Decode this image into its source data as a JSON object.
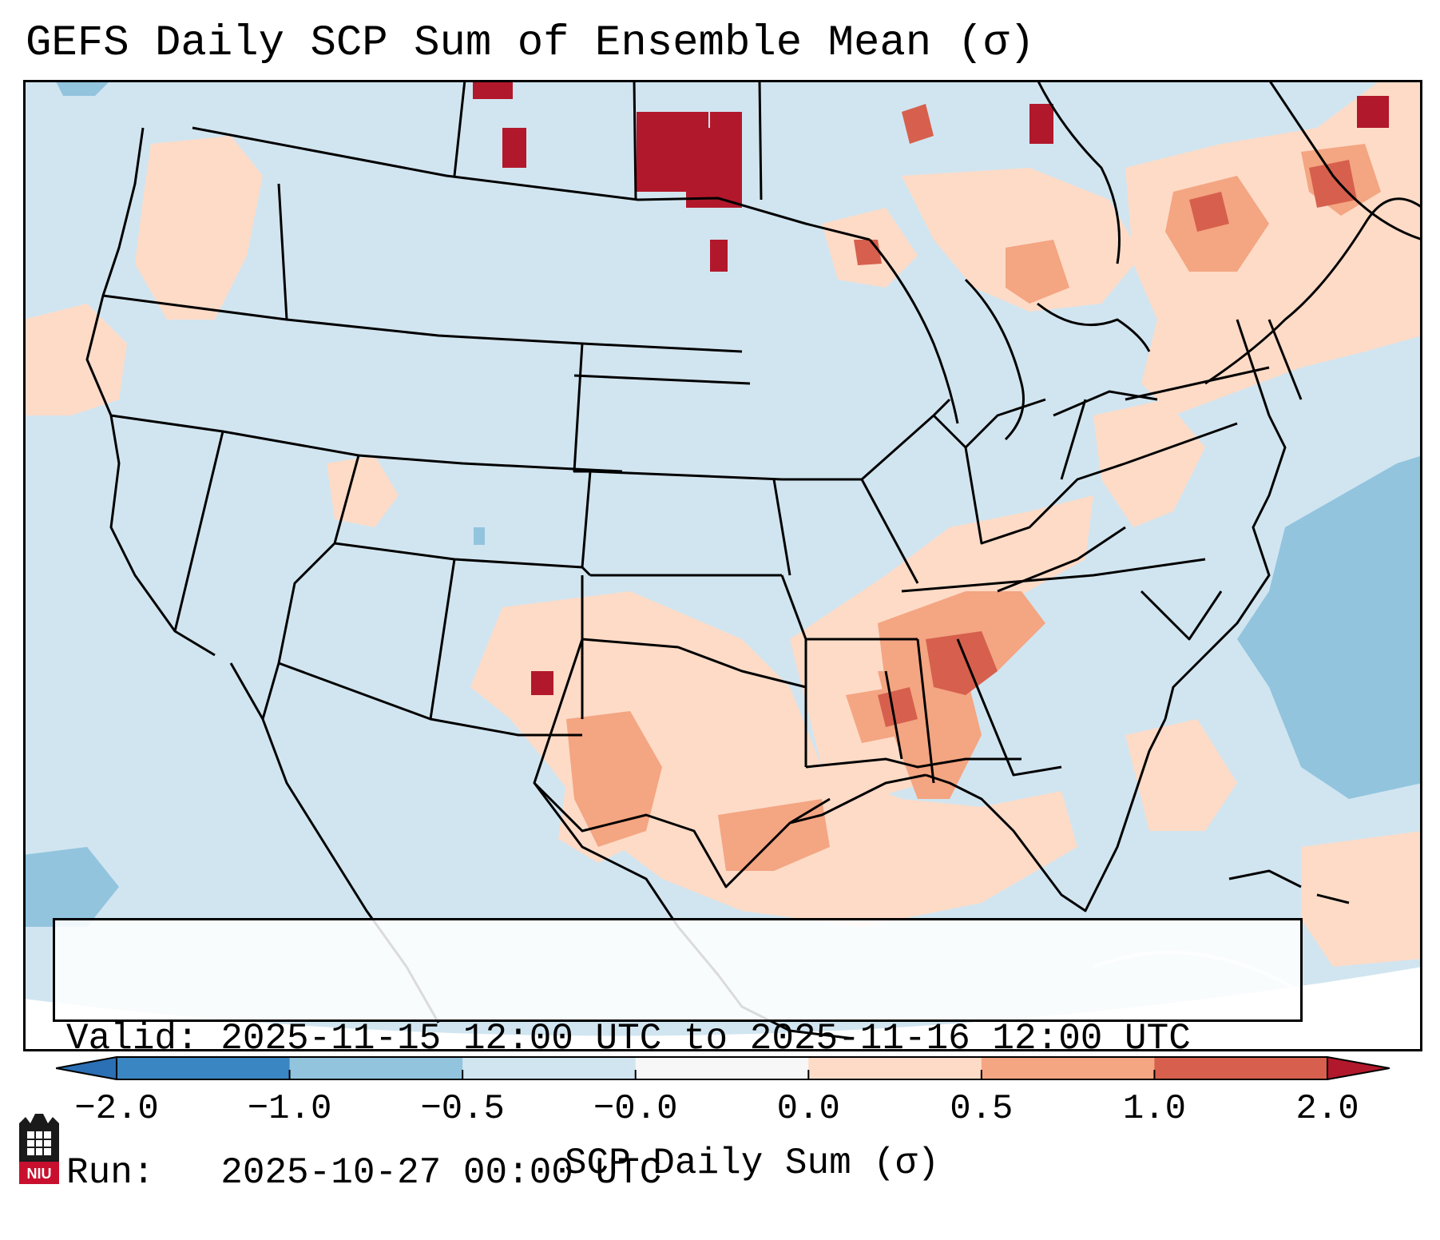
{
  "header": {
    "title": "GEFS Daily SCP Sum of Ensemble Mean (σ)"
  },
  "info_box": {
    "valid_line": "Valid: 2025-11-15 12:00 UTC to 2025-11-16 12:00 UTC",
    "run_line": "Run:   2025-10-27 00:00 UTC"
  },
  "colorbar": {
    "label": "SCP Daily Sum (σ)",
    "ticks": [
      "−2.0",
      "−1.0",
      "−0.5",
      "−0.0",
      "0.0",
      "0.5",
      "1.0",
      "2.0"
    ],
    "bins": [
      {
        "range": "below -2.0",
        "color": "#2b6fb4"
      },
      {
        "range": "-2.0 to -1.0",
        "color": "#3a86c2"
      },
      {
        "range": "-1.0 to -0.5",
        "color": "#92c4de"
      },
      {
        "range": "-0.5 to -0.0",
        "color": "#d1e5f0"
      },
      {
        "range": "-0.0 to 0.0",
        "color": "#f7f7f7"
      },
      {
        "range": "0.0 to 0.5",
        "color": "#fddbc7"
      },
      {
        "range": "0.5 to 1.0",
        "color": "#f4a582"
      },
      {
        "range": "1.0 to 2.0",
        "color": "#d6604d"
      },
      {
        "range": "above 2.0",
        "color": "#b2182b"
      }
    ]
  },
  "map": {
    "background_color": "#d1e5f0",
    "region": "Contiguous United States",
    "colors": {
      "light_positive": "#fddbc7",
      "medium_positive": "#f4a582",
      "strong_positive": "#d6604d",
      "very_strong_positive": "#b2182b",
      "light_negative": "#92c4de"
    }
  },
  "logo": {
    "text": "NIU"
  }
}
